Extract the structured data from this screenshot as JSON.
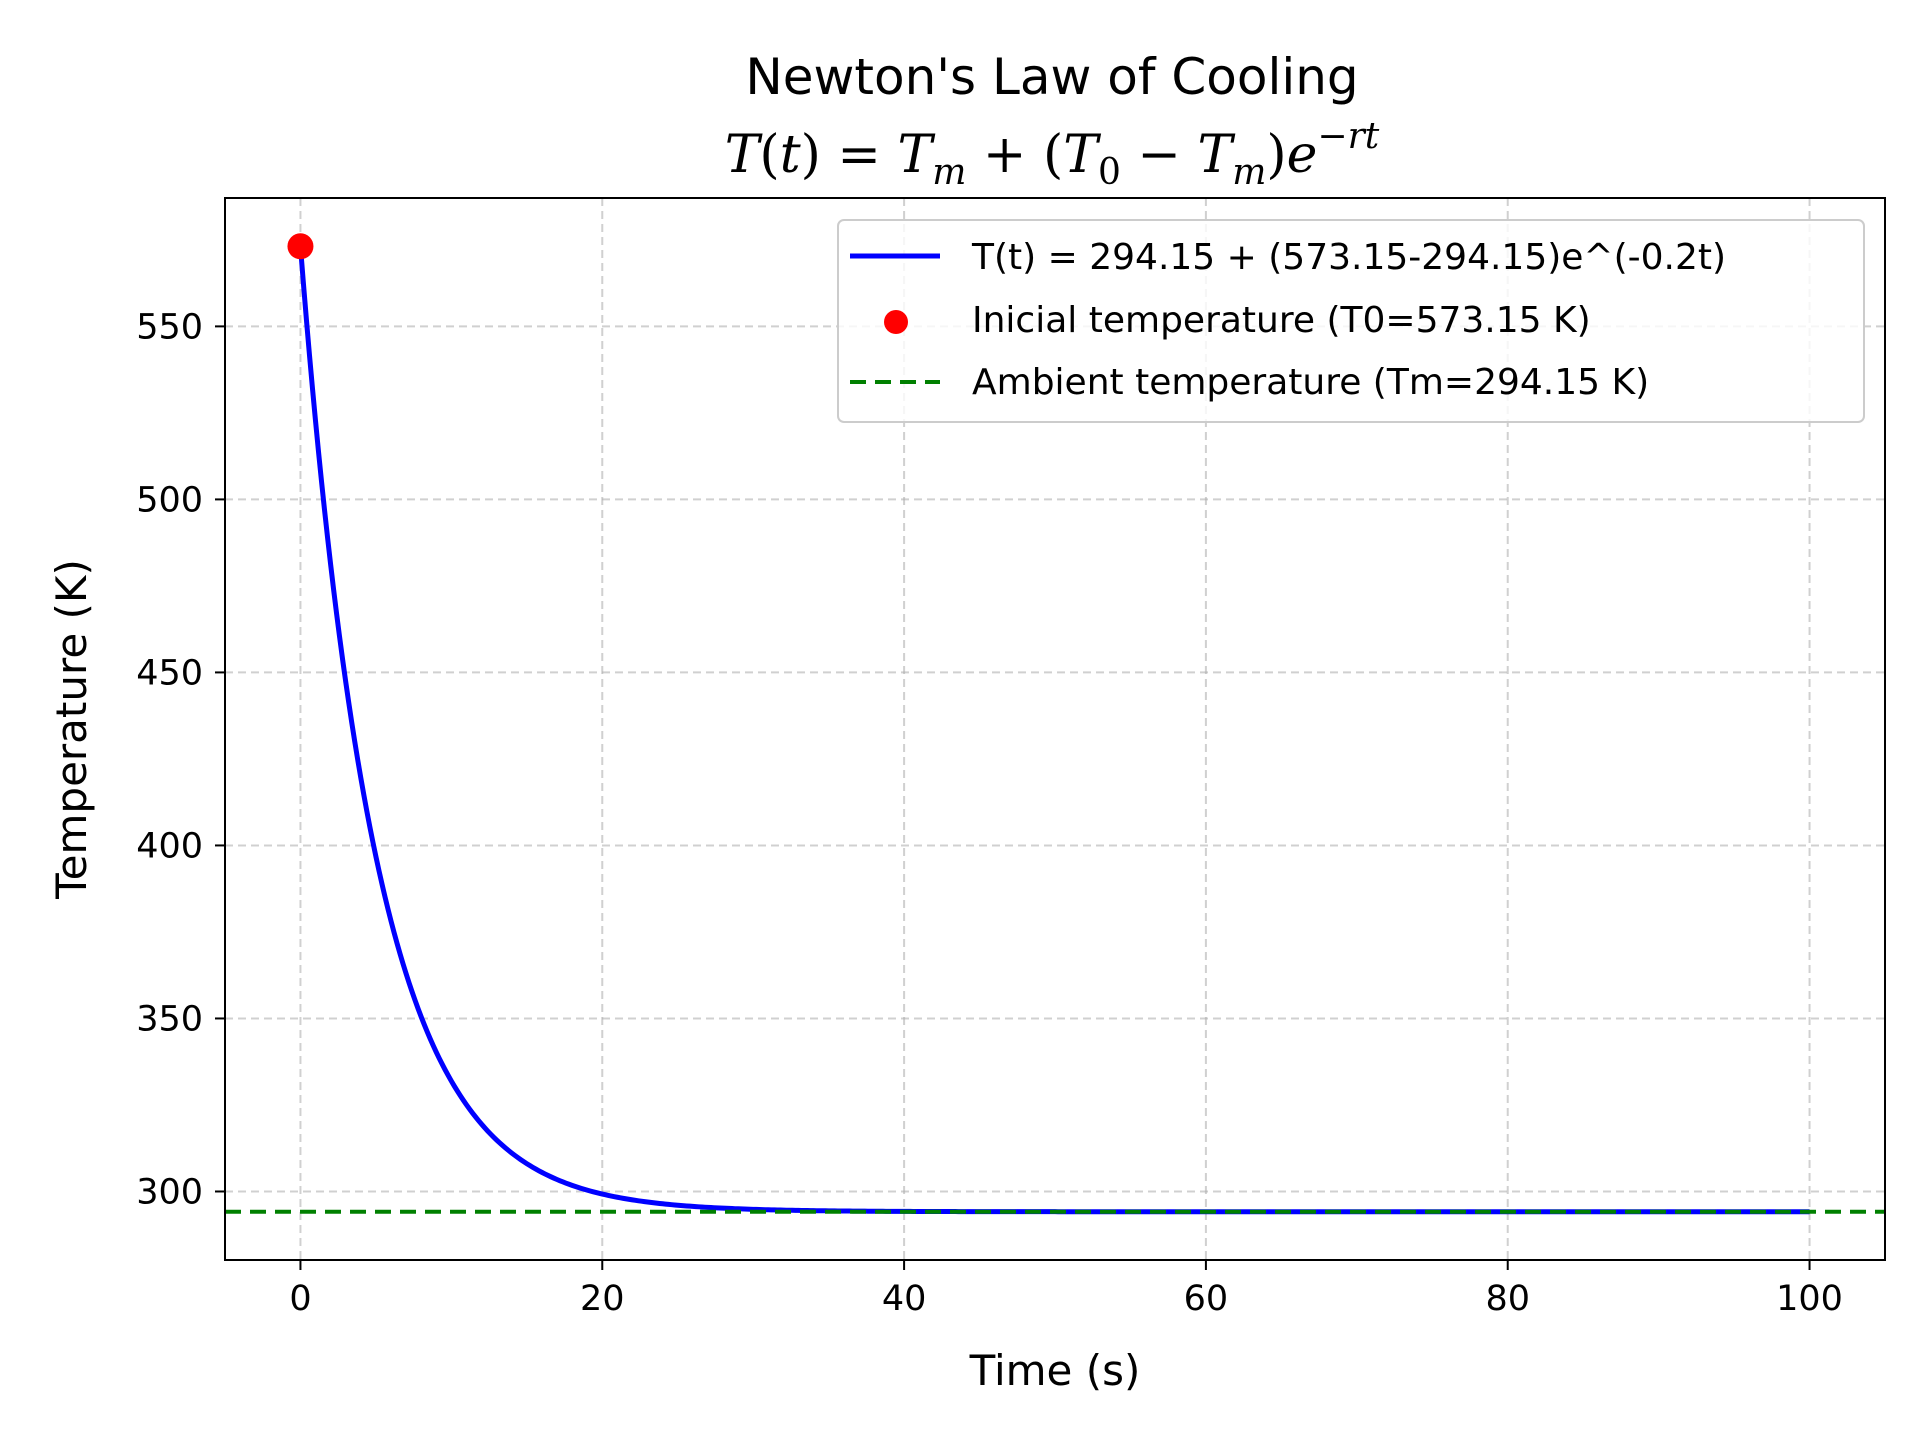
{
  "chart_data": {
    "type": "line",
    "title": "Newton's Law of Cooling",
    "subtitle": "T(t) = T_m + (T_0 − T_m)e^{−rt}",
    "xlabel": "Time (s)",
    "ylabel": "Temperature (K)",
    "xlim": [
      -5,
      105
    ],
    "ylim": [
      280.2,
      587.1
    ],
    "xticks": [
      0,
      20,
      40,
      60,
      80,
      100
    ],
    "yticks": [
      300,
      350,
      400,
      450,
      500,
      550
    ],
    "grid": true,
    "legend_position": "top-right",
    "model": {
      "T_m": 294.15,
      "T_0": 573.15,
      "r": 0.2,
      "t_start": 0,
      "t_end": 100
    },
    "series": [
      {
        "name": "T(t) = 294.15 + (573.15-294.15)e^(-0.2t)",
        "type": "line",
        "color": "#0000ff",
        "x": [
          0,
          1,
          2,
          3,
          4,
          5,
          6,
          7,
          8,
          9,
          10,
          12,
          14,
          16,
          18,
          20,
          25,
          30,
          35,
          40,
          50,
          60,
          70,
          80,
          90,
          100
        ],
        "y": [
          573.15,
          522.58,
          481.18,
          447.25,
          419.52,
          396.79,
          378.18,
          362.94,
          350.46,
          340.24,
          331.91,
          319.44,
          310.83,
          305.06,
          301.24,
          298.75,
          296.04,
          294.84,
          294.4,
          294.24,
          294.16,
          294.15,
          294.15,
          294.15,
          294.15,
          294.15
        ]
      },
      {
        "name": "Inicial temperature (T0=573.15 K)",
        "type": "scatter",
        "color": "#ff0000",
        "x": [
          0
        ],
        "y": [
          573.15
        ]
      },
      {
        "name": "Ambient temperature (Tm=294.15 K)",
        "type": "hline",
        "color": "#008000",
        "y": 294.15
      }
    ]
  }
}
